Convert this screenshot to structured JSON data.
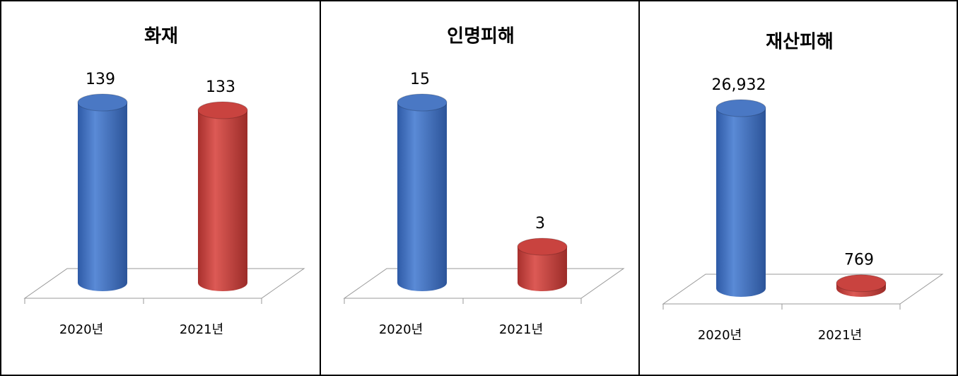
{
  "chart_data": [
    {
      "type": "bar3d",
      "title": "화재",
      "categories": [
        "2020년",
        "2021년"
      ],
      "values": [
        139,
        133
      ],
      "colors": [
        "#4a78c4",
        "#c9433f"
      ]
    },
    {
      "type": "bar3d",
      "title": "인명피해",
      "categories": [
        "2020년",
        "2021년"
      ],
      "values": [
        15,
        3
      ],
      "colors": [
        "#4a78c4",
        "#c9433f"
      ]
    },
    {
      "type": "bar3d",
      "title": "재산피해",
      "categories": [
        "2020년",
        "2021년"
      ],
      "values": [
        26932,
        769
      ],
      "value_labels": [
        "26,932",
        "769"
      ],
      "colors": [
        "#4a78c4",
        "#c9433f"
      ]
    }
  ]
}
